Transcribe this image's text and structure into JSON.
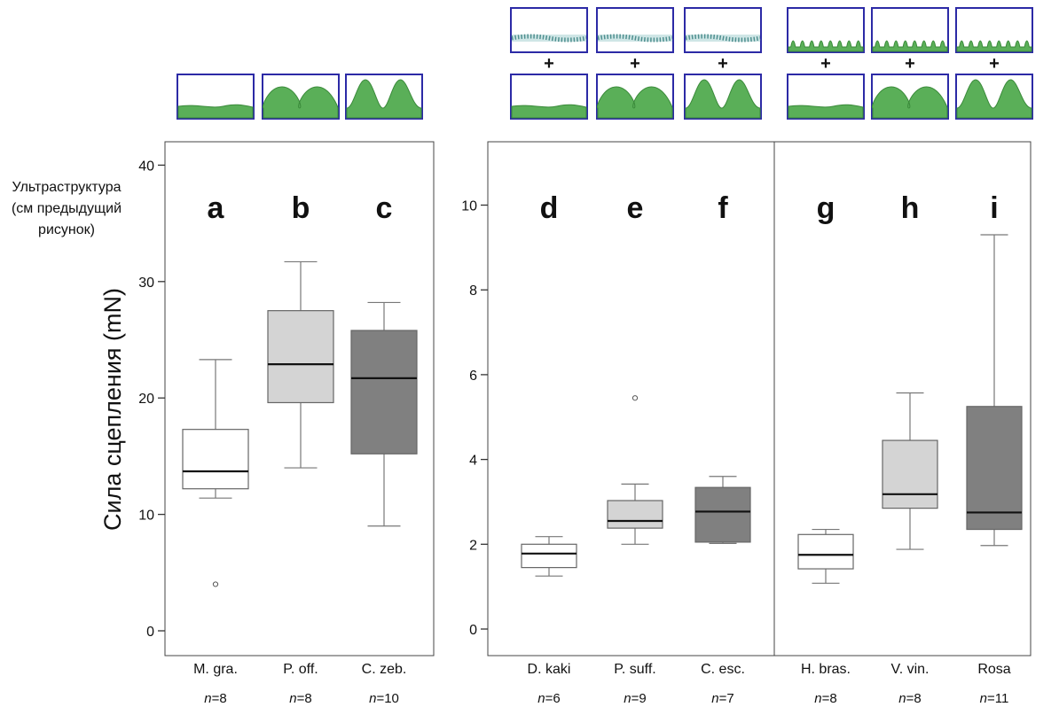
{
  "side_note": [
    "Ультраструктура",
    "(см предыдущий",
    "рисунок)"
  ],
  "plus_sign": "+",
  "colors": {
    "white_box": "#ffffff",
    "light_box": "#d4d4d4",
    "dark_box": "#808080",
    "surface_fill": "#5aaf58",
    "surface_stroke": "#3a8a3a",
    "thumbnail_border": "#2c2aa6",
    "wax_crystals": "#4f8f8f"
  },
  "chart_data": [
    {
      "type": "box",
      "ylabel": "Сила сцепления (mN)",
      "ylim": [
        0,
        40
      ],
      "yticks": [
        0,
        10,
        20,
        30,
        40
      ],
      "groups": [
        {
          "label": "a",
          "category": "M. gra.",
          "n": "8",
          "shade": "white",
          "min": 11.4,
          "q1": 12.2,
          "median": 13.7,
          "q3": 17.3,
          "max": 23.3,
          "outliers": [
            4.0
          ],
          "surface": "flat",
          "top_surface": "none"
        },
        {
          "label": "b",
          "category": "P. off.",
          "n": "8",
          "shade": "light",
          "min": 14.0,
          "q1": 19.6,
          "median": 22.9,
          "q3": 27.5,
          "max": 31.7,
          "outliers": [],
          "surface": "low-hills",
          "top_surface": "none"
        },
        {
          "label": "c",
          "category": "C. zeb.",
          "n": "10",
          "shade": "dark",
          "min": 9.0,
          "q1": 15.2,
          "median": 21.7,
          "q3": 25.8,
          "max": 28.2,
          "outliers": [],
          "surface": "tall-hills",
          "top_surface": "none"
        }
      ]
    },
    {
      "type": "box",
      "ylim": [
        0,
        11
      ],
      "yticks": [
        0,
        2,
        4,
        6,
        8,
        10
      ],
      "groups": [
        {
          "label": "d",
          "category": "D. kaki",
          "n": "6",
          "shade": "white",
          "min": 1.25,
          "q1": 1.45,
          "median": 1.78,
          "q3": 2.0,
          "max": 2.18,
          "outliers": [],
          "surface": "flat",
          "top_surface": "wax-crystals"
        },
        {
          "label": "e",
          "category": "P. suff.",
          "n": "9",
          "shade": "light",
          "min": 2.0,
          "q1": 2.38,
          "median": 2.55,
          "q3": 3.03,
          "max": 3.42,
          "outliers": [
            5.45
          ],
          "surface": "low-hills",
          "top_surface": "wax-crystals"
        },
        {
          "label": "f",
          "category": "C. esc.",
          "n": "7",
          "shade": "dark",
          "min": 2.02,
          "q1": 2.05,
          "median": 2.77,
          "q3": 3.34,
          "max": 3.6,
          "outliers": [],
          "surface": "tall-hills",
          "top_surface": "wax-crystals"
        },
        {
          "label": "g",
          "category": "H. bras.",
          "n": "8",
          "shade": "white",
          "min": 1.08,
          "q1": 1.42,
          "median": 1.75,
          "q3": 2.23,
          "max": 2.35,
          "outliers": [],
          "surface": "flat",
          "top_surface": "bumps"
        },
        {
          "label": "h",
          "category": "V. vin.",
          "n": "8",
          "shade": "light",
          "min": 1.88,
          "q1": 2.85,
          "median": 3.18,
          "q3": 4.45,
          "max": 5.57,
          "outliers": [],
          "surface": "low-hills",
          "top_surface": "bumps"
        },
        {
          "label": "i",
          "category": "Rosa",
          "n": "11",
          "shade": "dark",
          "min": 1.97,
          "q1": 2.35,
          "median": 2.75,
          "q3": 5.25,
          "max": 9.3,
          "outliers": [],
          "surface": "tall-hills",
          "top_surface": "bumps"
        }
      ]
    }
  ]
}
